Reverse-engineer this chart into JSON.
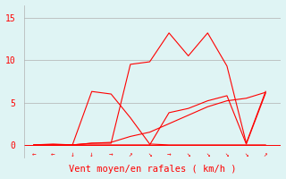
{
  "background_color": "#dff4f4",
  "line_color": "#ff0000",
  "grid_color": "#b0b0b0",
  "yticks": [
    0,
    5,
    10,
    15
  ],
  "ylim": [
    -1.5,
    16.5
  ],
  "xlim": [
    -0.5,
    12.8
  ],
  "xlabel": "Vent moyen/en rafales ( km/h )",
  "xlabel_color": "#ff0000",
  "xlabel_fontsize": 7.5,
  "ytick_fontsize": 7,
  "ytick_color": "#ff0000",
  "arrow_symbols": [
    "←",
    "←",
    "↓",
    "↓",
    "→",
    "↗",
    "↘",
    "→",
    "↘",
    "↘",
    "↘",
    "↘",
    "↗"
  ],
  "n_points": 13,
  "mean_wind": [
    0.0,
    0.0,
    0.0,
    0.2,
    0.3,
    1.0,
    1.5,
    2.5,
    3.5,
    4.5,
    5.2,
    5.5,
    6.2
  ],
  "gust_wind": [
    0.0,
    0.1,
    0.0,
    0.2,
    0.2,
    9.5,
    9.8,
    13.2,
    10.5,
    13.2,
    9.3,
    0.2,
    6.3
  ],
  "line3": [
    0.0,
    0.0,
    0.0,
    6.3,
    6.0,
    3.2,
    0.1,
    0.0,
    0.0,
    0.0,
    0.0,
    0.0,
    0.0
  ],
  "line4": [
    0.0,
    0.0,
    0.0,
    0.0,
    0.0,
    0.0,
    0.0,
    3.8,
    4.3,
    5.2,
    5.8,
    0.1,
    6.1
  ]
}
